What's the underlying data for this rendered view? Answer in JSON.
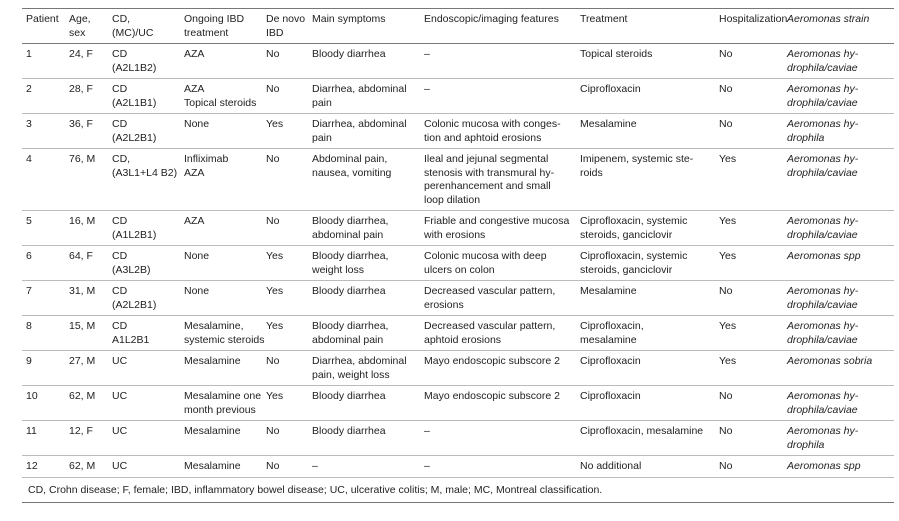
{
  "table": {
    "header": [
      [
        "Patient"
      ],
      [
        "Age,",
        "sex"
      ],
      [
        "CD,",
        "(MC)/UC"
      ],
      [
        "Ongoing IBD",
        "treatment"
      ],
      [
        "De novo",
        "IBD"
      ],
      [
        "Main symptoms"
      ],
      [
        "Endoscopic/imaging features"
      ],
      [
        "Treatment"
      ],
      [
        "Hospitalization"
      ],
      [
        "Aeromonas strain"
      ]
    ],
    "rows": [
      [
        [
          "1"
        ],
        [
          "24, F"
        ],
        [
          "CD",
          "(A2L1B2)"
        ],
        [
          "AZA"
        ],
        [
          "No"
        ],
        [
          "Bloody diarrhea"
        ],
        [
          "–"
        ],
        [
          "Topical steroids"
        ],
        [
          "No"
        ],
        [
          "Aeromonas hy-",
          "drophila/caviae"
        ]
      ],
      [
        [
          "2"
        ],
        [
          "28, F"
        ],
        [
          "CD",
          "(A2L1B1)"
        ],
        [
          "AZA",
          "Topical steroids"
        ],
        [
          "No"
        ],
        [
          "Diarrhea, abdominal",
          "pain"
        ],
        [
          "–"
        ],
        [
          "Ciprofloxacin"
        ],
        [
          "No"
        ],
        [
          "Aeromonas hy-",
          "drophila/caviae"
        ]
      ],
      [
        [
          "3"
        ],
        [
          "36, F"
        ],
        [
          "CD",
          "(A2L2B1)"
        ],
        [
          "None"
        ],
        [
          "Yes"
        ],
        [
          "Diarrhea, abdominal",
          "pain"
        ],
        [
          "Colonic mucosa with conges-",
          "tion and aphtoid erosions"
        ],
        [
          "Mesalamine"
        ],
        [
          "No"
        ],
        [
          "Aeromonas hy-",
          "drophila"
        ]
      ],
      [
        [
          "4"
        ],
        [
          "76, M"
        ],
        [
          "CD,",
          "(A3L1+L4 B2)"
        ],
        [
          "Infliximab",
          "AZA"
        ],
        [
          "No"
        ],
        [
          "Abdominal pain,",
          "nausea, vomiting"
        ],
        [
          "Ileal and jejunal segmental",
          "stenosis with transmural hy-",
          "perenhancement and small",
          "loop dilation"
        ],
        [
          "Imipenem, systemic ste-",
          "roids"
        ],
        [
          "Yes"
        ],
        [
          "Aeromonas hy-",
          "drophila/caviae"
        ]
      ],
      [
        [
          "5"
        ],
        [
          "16, M"
        ],
        [
          "CD",
          "(A1L2B1)"
        ],
        [
          "AZA"
        ],
        [
          "No"
        ],
        [
          "Bloody diarrhea,",
          "abdominal pain"
        ],
        [
          "Friable and congestive mucosa",
          "with erosions"
        ],
        [
          "Ciprofloxacin, systemic",
          "steroids, ganciclovir"
        ],
        [
          "Yes"
        ],
        [
          "Aeromonas hy-",
          "drophila/caviae"
        ]
      ],
      [
        [
          "6"
        ],
        [
          "64, F"
        ],
        [
          "CD",
          "(A3L2B)"
        ],
        [
          "None"
        ],
        [
          "Yes"
        ],
        [
          "Bloody diarrhea,",
          "weight loss"
        ],
        [
          "Colonic mucosa with deep",
          "ulcers on colon"
        ],
        [
          "Ciprofloxacin, systemic",
          "steroids, ganciclovir"
        ],
        [
          "Yes"
        ],
        [
          "Aeromonas spp"
        ]
      ],
      [
        [
          "7"
        ],
        [
          "31, M"
        ],
        [
          "CD",
          "(A2L2B1)"
        ],
        [
          "None"
        ],
        [
          "Yes"
        ],
        [
          "Bloody diarrhea"
        ],
        [
          "Decreased vascular pattern,",
          "erosions"
        ],
        [
          "Mesalamine"
        ],
        [
          "No"
        ],
        [
          "Aeromonas hy-",
          "drophila/caviae"
        ]
      ],
      [
        [
          "8"
        ],
        [
          "15, M"
        ],
        [
          "CD",
          "A1L2B1"
        ],
        [
          "Mesalamine,",
          "systemic steroids"
        ],
        [
          "Yes"
        ],
        [
          "Bloody diarrhea,",
          "abdominal pain"
        ],
        [
          "Decreased vascular pattern,",
          "aphtoid erosions"
        ],
        [
          "Ciprofloxacin,",
          "mesalamine"
        ],
        [
          "Yes"
        ],
        [
          "Aeromonas hy-",
          "drophila/caviae"
        ]
      ],
      [
        [
          "9"
        ],
        [
          "27, M"
        ],
        [
          "UC"
        ],
        [
          "Mesalamine"
        ],
        [
          "No"
        ],
        [
          "Diarrhea, abdominal",
          "pain, weight loss"
        ],
        [
          "Mayo endoscopic subscore 2"
        ],
        [
          "Ciprofloxacin"
        ],
        [
          "Yes"
        ],
        [
          "Aeromonas sobria"
        ]
      ],
      [
        [
          "10"
        ],
        [
          "62, M"
        ],
        [
          "UC"
        ],
        [
          "Mesalamine one",
          "month previous"
        ],
        [
          "Yes"
        ],
        [
          "Bloody diarrhea"
        ],
        [
          "Mayo endoscopic subscore 2"
        ],
        [
          "Ciprofloxacin"
        ],
        [
          "No"
        ],
        [
          "Aeromonas hy-",
          "drophila/caviae"
        ]
      ],
      [
        [
          "11"
        ],
        [
          "12, F"
        ],
        [
          "UC"
        ],
        [
          "Mesalamine"
        ],
        [
          "No"
        ],
        [
          "Bloody diarrhea"
        ],
        [
          "–"
        ],
        [
          "Ciprofloxacin, mesalamine"
        ],
        [
          "No"
        ],
        [
          "Aeromonas hy-",
          "drophila"
        ]
      ],
      [
        [
          "12"
        ],
        [
          "62, M"
        ],
        [
          "UC"
        ],
        [
          "Mesalamine"
        ],
        [
          "No"
        ],
        [
          "–"
        ],
        [
          "–"
        ],
        [
          "No additional"
        ],
        [
          "No"
        ],
        [
          "Aeromonas spp"
        ]
      ]
    ],
    "footnote": "CD, Crohn disease; F, female; IBD, inflammatory bowel disease; UC, ulcerative colitis; M, male; MC, Montreal classification."
  }
}
